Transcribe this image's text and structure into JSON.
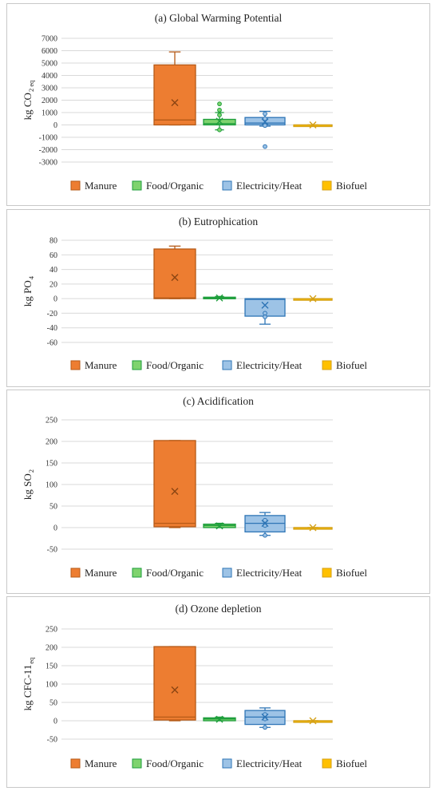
{
  "chart_data": [
    {
      "type": "box",
      "title": "(a) Global Warming Potential",
      "ylabel_main": "kg CO",
      "ylabel_sub": "2 eq",
      "ylim": [
        -3000,
        7000
      ],
      "yticks": [
        7000,
        6000,
        5000,
        4000,
        3000,
        2000,
        1000,
        0,
        -1000,
        -2000,
        -3000
      ],
      "series": [
        {
          "name": "Manure",
          "min": 0,
          "q1": 0,
          "median": 400,
          "q3": 4850,
          "max": 5900,
          "mean": 1800,
          "points": []
        },
        {
          "name": "Food/Organic",
          "min": -400,
          "q1": 0,
          "median": 100,
          "q3": 450,
          "max": 1000,
          "mean": 300,
          "points": [
            1700,
            1200,
            800,
            -400
          ]
        },
        {
          "name": "Electricity/Heat",
          "min": -100,
          "q1": 0,
          "median": 150,
          "q3": 600,
          "max": 1100,
          "mean": 250,
          "points": [
            900,
            500,
            -50,
            -1750
          ]
        },
        {
          "name": "Biofuel",
          "min": 0,
          "q1": 0,
          "median": 0,
          "q3": 0,
          "max": 0,
          "mean": 0,
          "points": []
        }
      ],
      "grid": true,
      "legend": "bottom"
    },
    {
      "type": "box",
      "title": "(b) Eutrophication",
      "ylabel_main": "kg PO",
      "ylabel_sub": "4",
      "ylim": [
        -60,
        80
      ],
      "yticks": [
        80,
        60,
        40,
        20,
        0,
        -20,
        -40,
        -60
      ],
      "series": [
        {
          "name": "Manure",
          "min": 0,
          "q1": 0,
          "median": 1,
          "q3": 68,
          "max": 72,
          "mean": 29,
          "points": []
        },
        {
          "name": "Food/Organic",
          "min": 0,
          "q1": 0,
          "median": 1,
          "q3": 2,
          "max": 3,
          "mean": 1,
          "points": []
        },
        {
          "name": "Electricity/Heat",
          "min": -35,
          "q1": -24,
          "median": -1,
          "q3": 0,
          "max": 0,
          "mean": -9,
          "points": [
            -20,
            -25
          ]
        },
        {
          "name": "Biofuel",
          "min": 0,
          "q1": 0,
          "median": 0,
          "q3": 0,
          "max": 0,
          "mean": 0,
          "points": []
        }
      ],
      "grid": true,
      "legend": "bottom"
    },
    {
      "type": "box",
      "title": "(c) Acidification",
      "ylabel_main": "kg SO",
      "ylabel_sub": "2",
      "ylim": [
        -50,
        250
      ],
      "yticks": [
        250,
        200,
        150,
        100,
        50,
        0,
        -50
      ],
      "series": [
        {
          "name": "Manure",
          "min": 0,
          "q1": 2,
          "median": 10,
          "q3": 202,
          "max": 202,
          "mean": 84,
          "points": []
        },
        {
          "name": "Food/Organic",
          "min": 0,
          "q1": 0,
          "median": 5,
          "q3": 8,
          "max": 10,
          "mean": 4,
          "points": []
        },
        {
          "name": "Electricity/Heat",
          "min": -18,
          "q1": -10,
          "median": 10,
          "q3": 28,
          "max": 35,
          "mean": 10,
          "points": [
            17,
            5,
            -18
          ]
        },
        {
          "name": "Biofuel",
          "min": 0,
          "q1": 0,
          "median": 0,
          "q3": 0,
          "max": 0,
          "mean": 0,
          "points": []
        }
      ],
      "grid": true,
      "legend": "bottom"
    },
    {
      "type": "box",
      "title": "(d) Ozone depletion",
      "ylabel_main": "kg CFC-11",
      "ylabel_sub": "eq",
      "ylim": [
        -50,
        250
      ],
      "yticks": [
        250,
        200,
        150,
        100,
        50,
        0,
        -50
      ],
      "series": [
        {
          "name": "Manure",
          "min": 0,
          "q1": 2,
          "median": 10,
          "q3": 202,
          "max": 202,
          "mean": 84,
          "points": []
        },
        {
          "name": "Food/Organic",
          "min": 0,
          "q1": 0,
          "median": 5,
          "q3": 8,
          "max": 10,
          "mean": 4,
          "points": []
        },
        {
          "name": "Electricity/Heat",
          "min": -18,
          "q1": -10,
          "median": 10,
          "q3": 28,
          "max": 35,
          "mean": 10,
          "points": [
            17,
            5,
            -18
          ]
        },
        {
          "name": "Biofuel",
          "min": 0,
          "q1": 0,
          "median": 0,
          "q3": 0,
          "max": 0,
          "mean": 0,
          "points": []
        }
      ],
      "grid": true,
      "legend": "bottom"
    }
  ],
  "legend_labels": [
    "Manure",
    "Food/Organic",
    "Electricity/Heat",
    "Biofuel"
  ],
  "colors": {
    "Manure": {
      "fill": "#ED7D31",
      "stroke": "#B65A17"
    },
    "Food/Organic": {
      "fill": "#7ED36E",
      "stroke": "#1E9E3C"
    },
    "Electricity/Heat": {
      "fill": "#9DC3E6",
      "stroke": "#2E75B6"
    },
    "Biofuel": {
      "fill": "#FFC000",
      "stroke": "#D4A017"
    }
  }
}
